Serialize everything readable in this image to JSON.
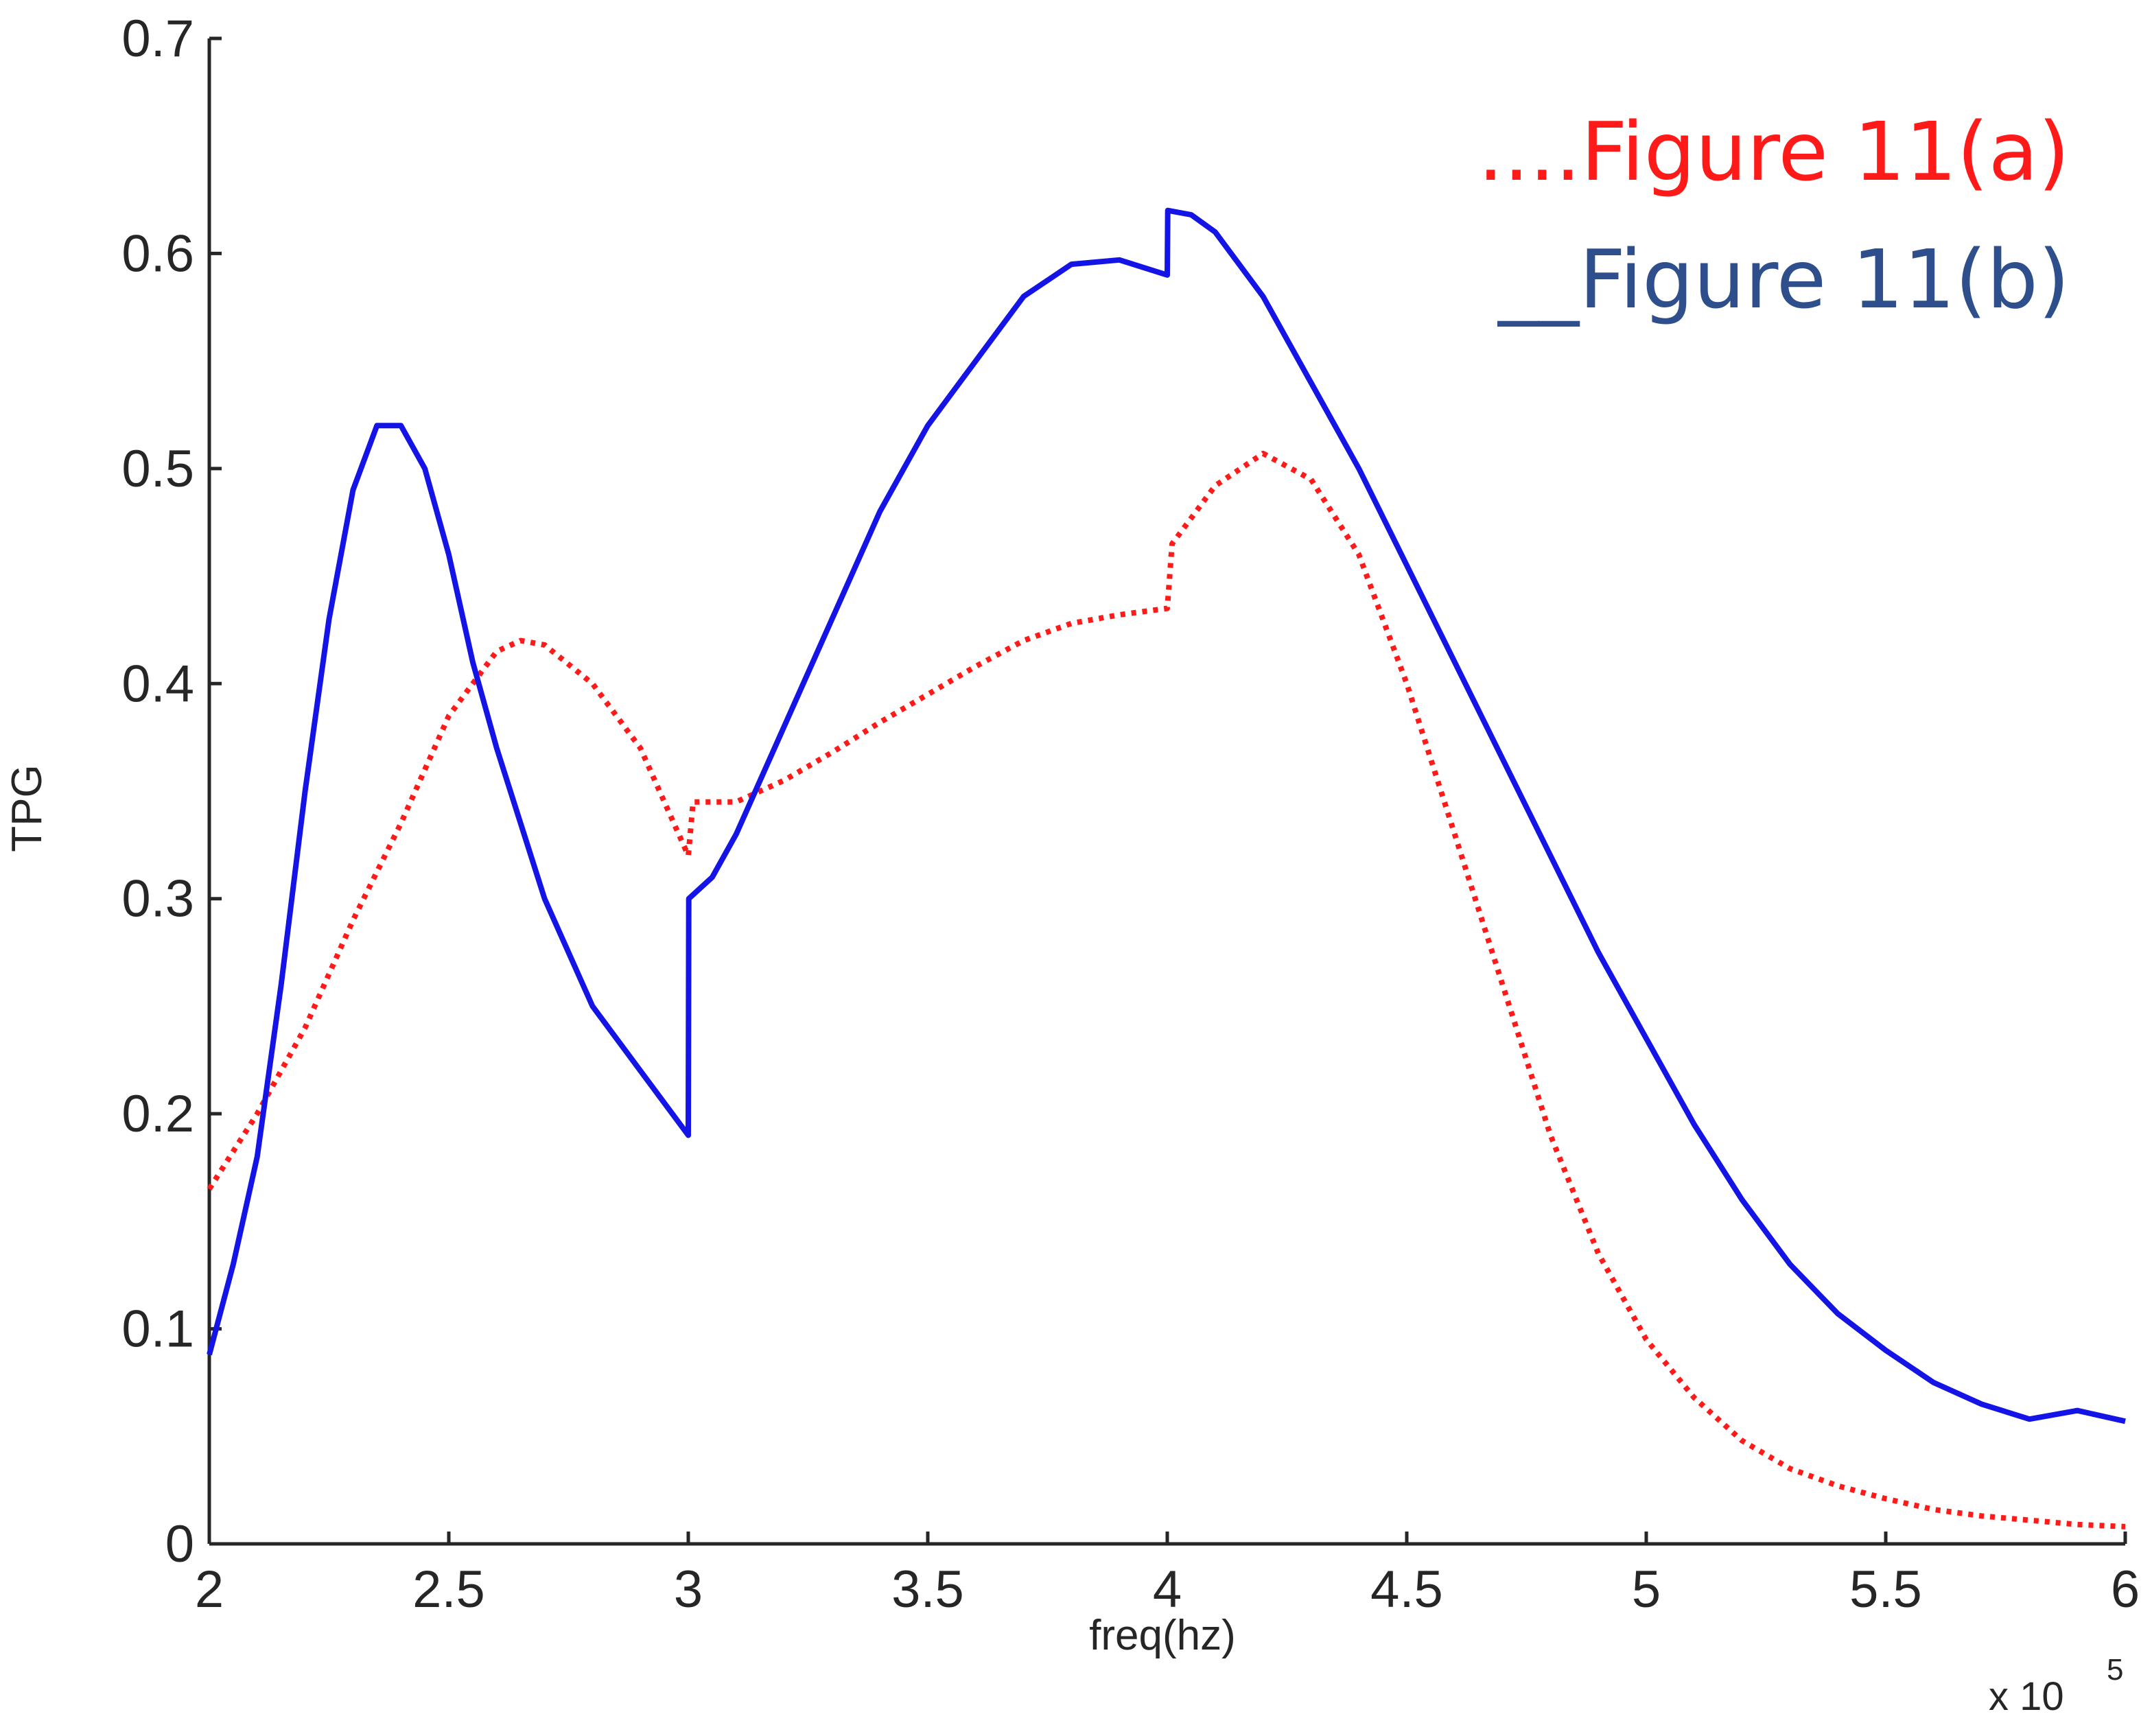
{
  "chart_data": {
    "type": "line",
    "xlabel": "freq(hz)",
    "ylabel": "TPG",
    "x_exponent_label": "x 10",
    "x_exponent_power": "5",
    "xlim": [
      2,
      6
    ],
    "ylim": [
      0,
      0.7
    ],
    "x_ticks": [
      "2",
      "2.5",
      "3",
      "3.5",
      "4",
      "4.5",
      "5",
      "5.5",
      "6"
    ],
    "y_ticks": [
      "0",
      "0.1",
      "0.2",
      "0.3",
      "0.4",
      "0.5",
      "0.6",
      "0.7"
    ],
    "grid": false,
    "legend_position": "top-right",
    "colors": {
      "series_a": "#ff1a1a",
      "series_b": "#1414e6",
      "legend_b_text": "#2e4f8c",
      "axis": "#262626"
    },
    "series": [
      {
        "name": "Figure 11(a)",
        "legend_label": "....Figure 11(a)",
        "style": "dotted",
        "x": [
          2.0,
          2.1,
          2.2,
          2.3,
          2.4,
          2.5,
          2.6,
          2.65,
          2.7,
          2.8,
          2.9,
          3.0,
          3.01,
          3.1,
          3.2,
          3.3,
          3.4,
          3.5,
          3.6,
          3.7,
          3.8,
          3.9,
          4.0,
          4.01,
          4.1,
          4.2,
          4.3,
          4.4,
          4.5,
          4.6,
          4.7,
          4.8,
          4.9,
          5.0,
          5.1,
          5.2,
          5.3,
          5.4,
          5.5,
          5.6,
          5.7,
          5.8,
          5.9,
          6.0
        ],
        "y": [
          0.165,
          0.2,
          0.24,
          0.29,
          0.335,
          0.385,
          0.415,
          0.42,
          0.418,
          0.4,
          0.37,
          0.32,
          0.345,
          0.345,
          0.355,
          0.368,
          0.382,
          0.395,
          0.408,
          0.42,
          0.428,
          0.432,
          0.435,
          0.465,
          0.492,
          0.507,
          0.495,
          0.46,
          0.4,
          0.33,
          0.26,
          0.19,
          0.135,
          0.095,
          0.068,
          0.048,
          0.035,
          0.027,
          0.021,
          0.016,
          0.013,
          0.011,
          0.009,
          0.008
        ]
      },
      {
        "name": "Figure 11(b)",
        "legend_label": "__Figure 11(b)",
        "style": "solid",
        "x": [
          2.0,
          2.05,
          2.1,
          2.15,
          2.2,
          2.25,
          2.3,
          2.35,
          2.4,
          2.45,
          2.5,
          2.55,
          2.6,
          2.7,
          2.8,
          2.9,
          3.0,
          3.001,
          3.05,
          3.1,
          3.2,
          3.3,
          3.4,
          3.5,
          3.6,
          3.7,
          3.8,
          3.9,
          4.0,
          4.001,
          4.05,
          4.1,
          4.2,
          4.3,
          4.4,
          4.5,
          4.6,
          4.7,
          4.8,
          4.9,
          5.0,
          5.1,
          5.2,
          5.3,
          5.4,
          5.5,
          5.6,
          5.7,
          5.8,
          5.9,
          6.0
        ],
        "y": [
          0.088,
          0.13,
          0.18,
          0.26,
          0.35,
          0.43,
          0.49,
          0.52,
          0.52,
          0.5,
          0.46,
          0.41,
          0.37,
          0.3,
          0.25,
          0.22,
          0.19,
          0.3,
          0.31,
          0.33,
          0.38,
          0.43,
          0.48,
          0.52,
          0.55,
          0.58,
          0.595,
          0.597,
          0.59,
          0.62,
          0.618,
          0.61,
          0.58,
          0.54,
          0.5,
          0.455,
          0.41,
          0.365,
          0.32,
          0.275,
          0.235,
          0.195,
          0.16,
          0.13,
          0.107,
          0.09,
          0.075,
          0.065,
          0.058,
          0.062,
          0.057
        ]
      }
    ]
  }
}
